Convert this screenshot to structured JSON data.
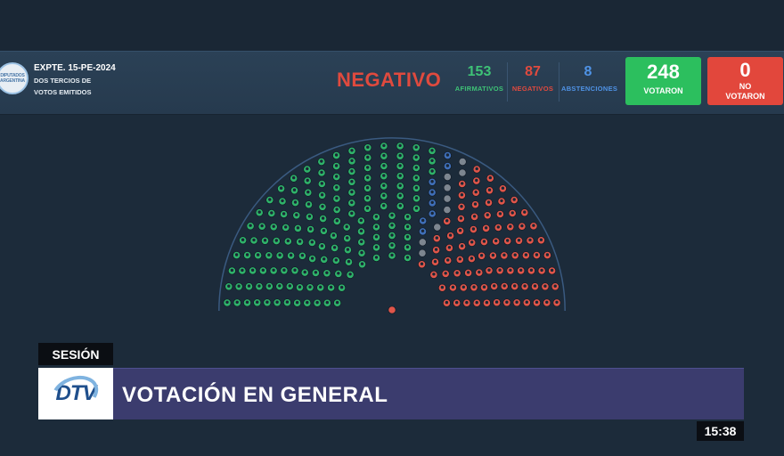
{
  "header": {
    "logo_text": "DIPUTADOS ARGENTINA",
    "expediente": "EXPTE. 15-PE-2024",
    "subtitle_line1": "DOS TERCIOS DE",
    "subtitle_line2": "VOTOS EMITIDOS",
    "result": "NEGATIVO",
    "afirmativos": {
      "value": "153",
      "label": "AFIRMATIVOS"
    },
    "negativos": {
      "value": "87",
      "label": "NEGATIVOS"
    },
    "abstenciones": {
      "value": "8",
      "label": "ABSTENCIONES"
    },
    "votaron": {
      "value": "248",
      "label": "VOTARON"
    },
    "no_votaron": {
      "value": "0",
      "label_line1": "NO",
      "label_line2": "VOTARON"
    }
  },
  "chamber": {
    "totals": {
      "afirmativo": 153,
      "negativo": 87,
      "abstencion": 8,
      "empty": 9
    },
    "colors": {
      "afirmativo": "#2fb36a",
      "negativo": "#e0564a",
      "abstencion": "#3f6fb8",
      "empty": "#7d8690",
      "outline": "#1a2635"
    }
  },
  "footer": {
    "segment": "SESIÓN",
    "channel_logo": "DTV",
    "headline": "VOTACIÓN EN GENERAL",
    "clock": "15:38"
  },
  "colors": {
    "background": "#1c2b3a",
    "header_bg": "#2b4156",
    "lower_third": "#3b3c6e",
    "votaron_tile": "#2cbf5e",
    "no_votaron_tile": "#e2473c"
  }
}
